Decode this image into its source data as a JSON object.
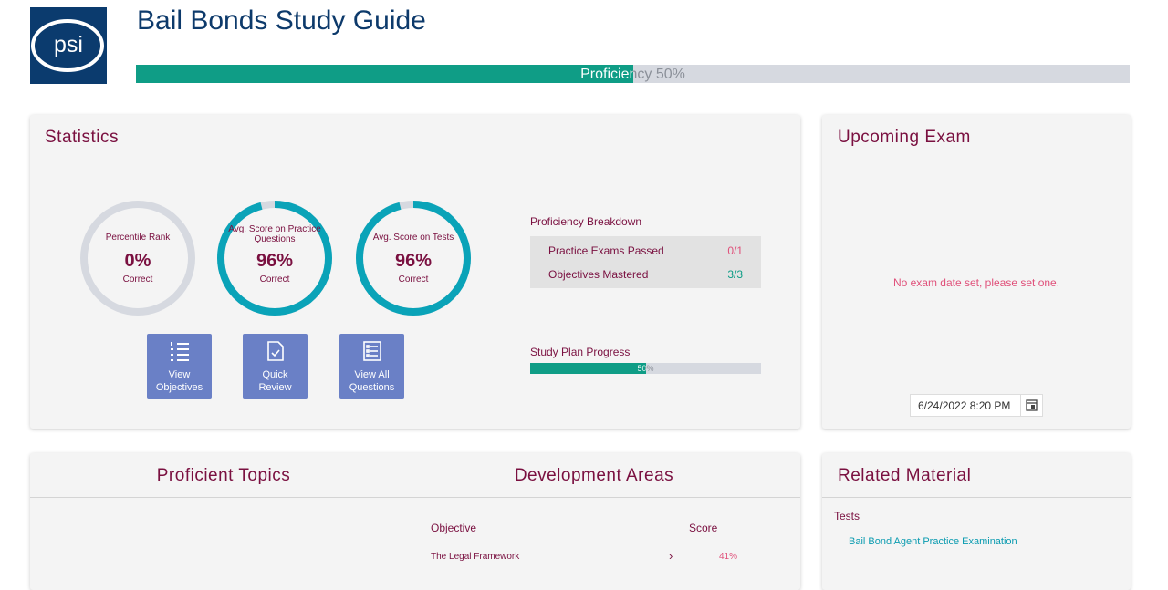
{
  "header": {
    "title": "Bail Bonds Study Guide",
    "logo": "psi",
    "proficiency": {
      "label": "Proficiency",
      "value": 50,
      "value_label": "50%"
    }
  },
  "statistics": {
    "title": "Statistics",
    "gauges": [
      {
        "label": "Percentile Rank",
        "value": 0,
        "value_label": "0%",
        "caption": "Correct"
      },
      {
        "label": "Avg. Score on Practice Questions",
        "value": 96,
        "value_label": "96%",
        "caption": "Correct"
      },
      {
        "label": "Avg. Score on Tests",
        "value": 96,
        "value_label": "96%",
        "caption": "Correct"
      }
    ],
    "buttons": [
      "View Objectives",
      "Quick Review",
      "View All Questions"
    ],
    "breakdown": {
      "title": "Proficiency Breakdown",
      "rows": [
        {
          "label": "Practice Exams Passed",
          "value": "0/1"
        },
        {
          "label": "Objectives Mastered",
          "value": "3/3"
        }
      ]
    },
    "study_plan": {
      "title": "Study Plan Progress",
      "value": 50,
      "value_label": "50%"
    }
  },
  "upcoming_exam": {
    "title": "Upcoming Exam",
    "message": "No exam date set, please set one.",
    "date": "6/24/2022 8:20 PM"
  },
  "topics": {
    "proficient_title": "Proficient Topics",
    "development_title": "Development Areas",
    "columns": [
      "Objective",
      "Score"
    ],
    "rows": [
      {
        "objective": "The Legal Framework",
        "arrow": "›",
        "score": "41%"
      }
    ]
  },
  "related": {
    "title": "Related Material",
    "sections": [
      {
        "title": "Tests",
        "links": [
          "Bail Bond Agent Practice Examination"
        ]
      }
    ]
  }
}
